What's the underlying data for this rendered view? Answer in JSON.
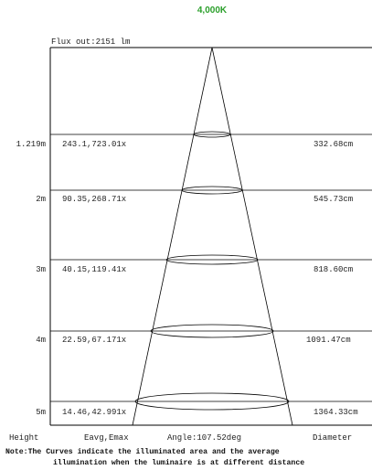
{
  "title": "4,000K",
  "flux_out": "Flux out:2151 lm",
  "colors": {
    "title": "#2ca02c",
    "lines": "#000000",
    "text": "#222222"
  },
  "rows": [
    {
      "height": "1.219m",
      "eavg_emax": "243.1,723.01x",
      "diameter": "332.68cm"
    },
    {
      "height": "2m",
      "eavg_emax": "90.35,268.71x",
      "diameter": "545.73cm"
    },
    {
      "height": "3m",
      "eavg_emax": "40.15,119.41x",
      "diameter": "818.60cm"
    },
    {
      "height": "4m",
      "eavg_emax": "22.59,67.171x",
      "diameter": "1091.47cm"
    },
    {
      "height": "5m",
      "eavg_emax": "14.46,42.991x",
      "diameter": "1364.33cm"
    }
  ],
  "footer": {
    "height_label": "Height",
    "eavg_label": "Eavg,Emax",
    "angle_label": "Angle:107.52deg",
    "diameter_label": "Diameter"
  },
  "note": {
    "line1": "Note:The Curves indicate the illuminated area and the average",
    "line2": "illumination when the luminaire is at different distance"
  }
}
